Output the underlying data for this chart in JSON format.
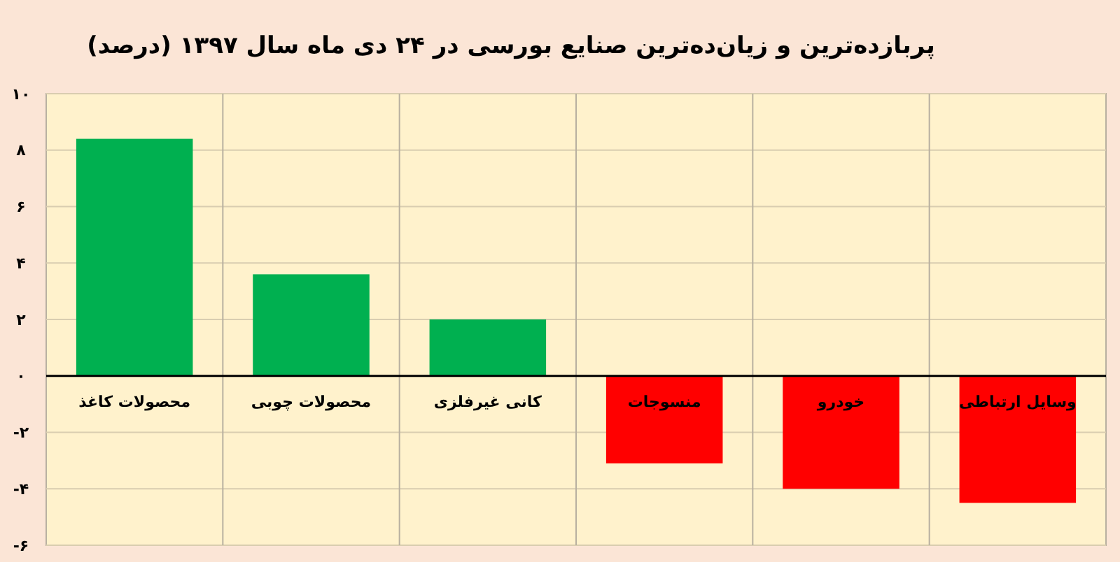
{
  "chart_data": {
    "type": "bar",
    "title": "پربازده‌ترین و زیان‌ده‌ترین صنایع بورسی در ۲۴ دی ماه سال ۱۳۹۷ (درصد)",
    "categories": [
      "محصولات کاغذ",
      "محصولات چوبی",
      "کانی غیرفلزی",
      "منسوجات",
      "خودرو",
      "وسایل ارتباطی"
    ],
    "values": [
      8.4,
      3.6,
      2.0,
      -3.1,
      -4.0,
      -4.5
    ],
    "colors": [
      "#00b050",
      "#00b050",
      "#00b050",
      "#ff0000",
      "#ff0000",
      "#ff0000"
    ],
    "ylim": [
      -6,
      10
    ],
    "yticks": [
      {
        "value": -6,
        "label": "-۶"
      },
      {
        "value": -4,
        "label": "-۴"
      },
      {
        "value": -2,
        "label": "-۲"
      },
      {
        "value": 0,
        "label": "۰"
      },
      {
        "value": 2,
        "label": "۲"
      },
      {
        "value": 4,
        "label": "۴"
      },
      {
        "value": 6,
        "label": "۶"
      },
      {
        "value": 8,
        "label": "۸"
      },
      {
        "value": 10,
        "label": "۱۰"
      }
    ],
    "grid": true
  }
}
